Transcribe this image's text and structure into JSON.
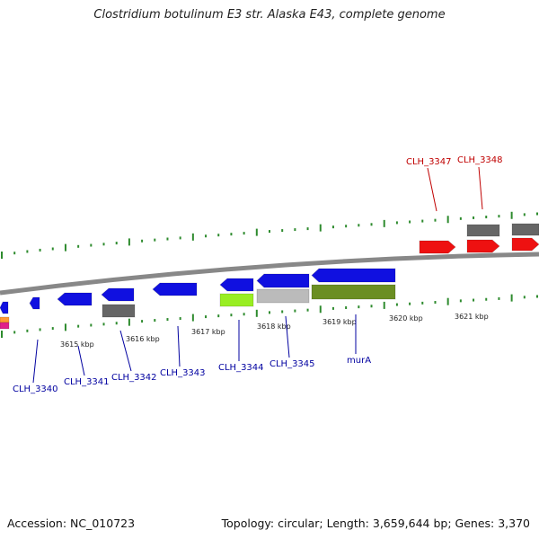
{
  "title": "Clostridium botulinum E3 str. Alaska E43, complete genome",
  "footer": {
    "accession": "Accession: NC_010723",
    "summary": "Topology: circular; Length: 3,659,644 bp; Genes: 3,370"
  },
  "colors": {
    "backbone": "#888888",
    "tick": "#2e8b2e",
    "label_forward": "#c00000",
    "label_reverse": "#0000a0",
    "gene_blue": "#1010e0",
    "gene_red": "#ee1111",
    "gene_gray": "#666666",
    "gene_lightgray": "#bbbbbb",
    "gene_lime": "#99ee22",
    "gene_olive": "#6b8e23",
    "gene_orange": "#ff9933",
    "gene_magenta": "#e0208a"
  },
  "kbp_labels": [
    "3615 kbp",
    "3616 kbp",
    "3617 kbp",
    "3618 kbp",
    "3619 kbp",
    "3620 kbp",
    "3621 kbp"
  ],
  "forward_labels": [
    "CLH_3347",
    "CLH_3348"
  ],
  "reverse_labels": [
    "CLH_3340",
    "CLH_3341",
    "CLH_3342",
    "CLH_3343",
    "CLH_3344",
    "CLH_3345",
    "murA"
  ]
}
